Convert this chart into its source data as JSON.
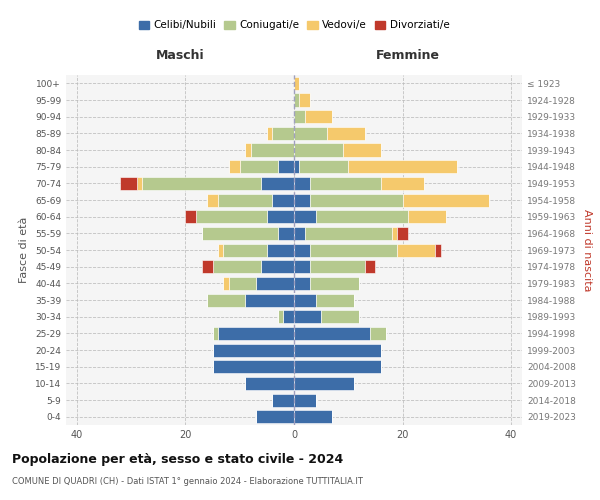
{
  "age_groups": [
    "0-4",
    "5-9",
    "10-14",
    "15-19",
    "20-24",
    "25-29",
    "30-34",
    "35-39",
    "40-44",
    "45-49",
    "50-54",
    "55-59",
    "60-64",
    "65-69",
    "70-74",
    "75-79",
    "80-84",
    "85-89",
    "90-94",
    "95-99",
    "100+"
  ],
  "birth_years": [
    "2019-2023",
    "2014-2018",
    "2009-2013",
    "2004-2008",
    "1999-2003",
    "1994-1998",
    "1989-1993",
    "1984-1988",
    "1979-1983",
    "1974-1978",
    "1969-1973",
    "1964-1968",
    "1959-1963",
    "1954-1958",
    "1949-1953",
    "1944-1948",
    "1939-1943",
    "1934-1938",
    "1929-1933",
    "1924-1928",
    "≤ 1923"
  ],
  "colors": {
    "celibe": "#3d6da8",
    "coniugato": "#b5c98e",
    "vedovo": "#f5c96c",
    "divorziato": "#c0392b"
  },
  "maschi": {
    "celibe": [
      7,
      4,
      9,
      15,
      15,
      14,
      2,
      9,
      7,
      6,
      5,
      3,
      5,
      4,
      6,
      3,
      0,
      0,
      0,
      0,
      0
    ],
    "coniugato": [
      0,
      0,
      0,
      0,
      0,
      1,
      1,
      7,
      5,
      9,
      8,
      14,
      13,
      10,
      22,
      7,
      8,
      4,
      0,
      0,
      0
    ],
    "vedovo": [
      0,
      0,
      0,
      0,
      0,
      0,
      0,
      0,
      1,
      0,
      1,
      0,
      0,
      2,
      1,
      2,
      1,
      1,
      0,
      0,
      0
    ],
    "divorziato": [
      0,
      0,
      0,
      0,
      0,
      0,
      0,
      0,
      0,
      2,
      0,
      0,
      2,
      0,
      3,
      0,
      0,
      0,
      0,
      0,
      0
    ]
  },
  "femmine": {
    "nubile": [
      7,
      4,
      11,
      16,
      16,
      14,
      5,
      4,
      3,
      3,
      3,
      2,
      4,
      3,
      3,
      1,
      0,
      0,
      0,
      0,
      0
    ],
    "coniugata": [
      0,
      0,
      0,
      0,
      0,
      3,
      7,
      7,
      9,
      10,
      16,
      16,
      17,
      17,
      13,
      9,
      9,
      6,
      2,
      1,
      0
    ],
    "vedova": [
      0,
      0,
      0,
      0,
      0,
      0,
      0,
      0,
      0,
      0,
      7,
      1,
      7,
      16,
      8,
      20,
      7,
      7,
      5,
      2,
      1
    ],
    "divorziata": [
      0,
      0,
      0,
      0,
      0,
      0,
      0,
      0,
      0,
      2,
      1,
      2,
      0,
      0,
      0,
      0,
      0,
      0,
      0,
      0,
      0
    ]
  },
  "xlim": 42,
  "title": "Popolazione per età, sesso e stato civile - 2024",
  "subtitle": "COMUNE DI QUADRI (CH) - Dati ISTAT 1° gennaio 2024 - Elaborazione TUTTITALIA.IT",
  "xlabel_left": "Maschi",
  "xlabel_right": "Femmine",
  "ylabel_left": "Fasce di età",
  "ylabel_right": "Anni di nascita",
  "legend_labels": [
    "Celibi/Nubili",
    "Coniugati/e",
    "Vedovi/e",
    "Divorziati/e"
  ],
  "bg_color": "#f5f5f5"
}
